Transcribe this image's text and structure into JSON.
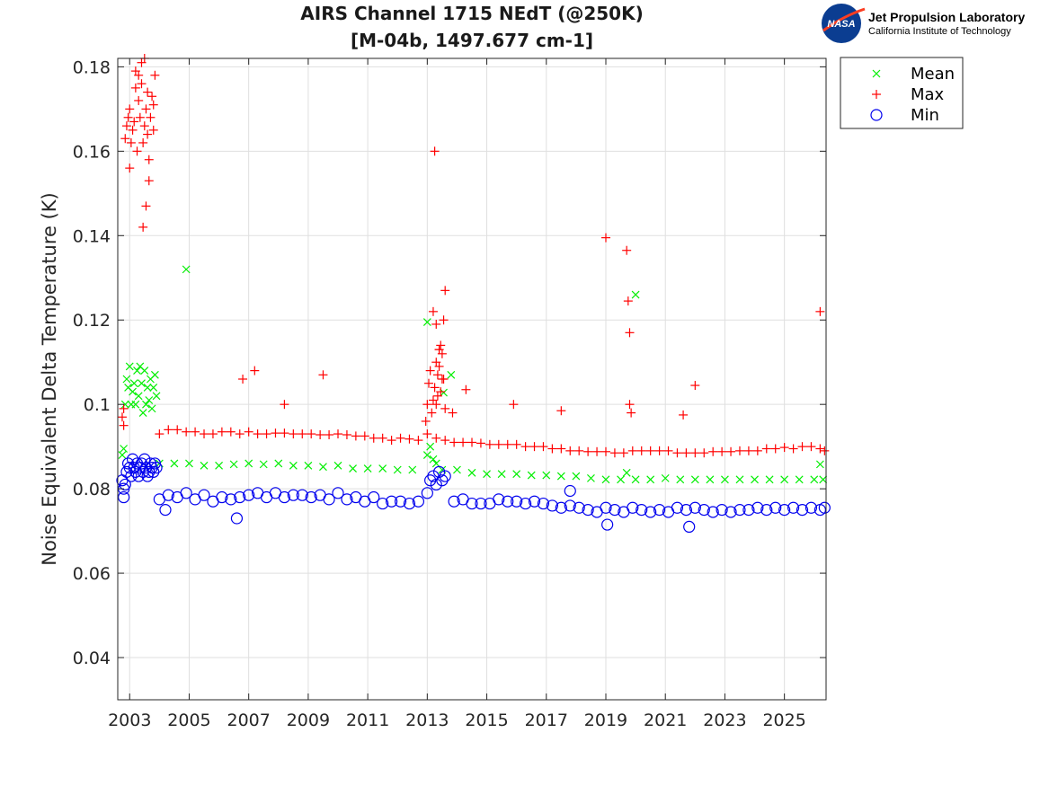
{
  "logo": {
    "badge_text": "NASA",
    "org_name": "Jet Propulsion Laboratory",
    "org_subtitle": "California Institute of Technology"
  },
  "chart_data": {
    "type": "scatter",
    "title": "AIRS Channel 1715 NEdT (@250K)",
    "subtitle": "[M-04b, 1497.677 cm-1]",
    "xlabel": "",
    "ylabel": "Noise Equivalent Delta Temperature (K)",
    "xlim": [
      2002.6,
      2026.4
    ],
    "ylim": [
      0.03,
      0.182
    ],
    "xticks": [
      2003,
      2005,
      2007,
      2009,
      2011,
      2013,
      2015,
      2017,
      2019,
      2021,
      2023,
      2025
    ],
    "xtick_labels": [
      "2003",
      "2005",
      "2007",
      "2009",
      "2011",
      "2013",
      "2015",
      "2017",
      "2019",
      "2021",
      "2023",
      "2025"
    ],
    "yticks": [
      0.04,
      0.06,
      0.08,
      0.1,
      0.12,
      0.14,
      0.16,
      0.18
    ],
    "ytick_labels": [
      "0.04",
      "0.06",
      "0.08",
      "0.1",
      "0.12",
      "0.14",
      "0.16",
      "0.18"
    ],
    "grid": true,
    "legend_position": "outside-top-right",
    "series": [
      {
        "name": "Mean",
        "marker": "x",
        "color": "#00ee00",
        "x": [
          2002.75,
          2002.8,
          2002.85,
          2002.9,
          2002.95,
          2003.0,
          2003.05,
          2003.1,
          2003.15,
          2003.2,
          2003.25,
          2003.3,
          2003.35,
          2003.4,
          2003.45,
          2003.5,
          2003.55,
          2003.6,
          2003.65,
          2003.7,
          2003.75,
          2003.8,
          2003.85,
          2003.9,
          2004.0,
          2004.5,
          2005.0,
          2005.5,
          2006.0,
          2006.5,
          2007.0,
          2007.5,
          2008.0,
          2008.5,
          2009.0,
          2009.5,
          2010.0,
          2010.5,
          2011.0,
          2011.5,
          2012.0,
          2012.5,
          2013.0,
          2013.1,
          2013.2,
          2013.3,
          2013.5,
          2014.0,
          2014.5,
          2015.0,
          2015.5,
          2016.0,
          2016.5,
          2017.0,
          2017.5,
          2018.0,
          2018.5,
          2019.0,
          2019.5,
          2020.0,
          2020.5,
          2021.0,
          2021.5,
          2022.0,
          2022.5,
          2023.0,
          2023.5,
          2024.0,
          2024.5,
          2025.0,
          2025.5,
          2026.0,
          2026.3,
          2004.9,
          2013.0,
          2013.55,
          2013.8,
          2019.7,
          2020.0,
          2026.2
        ],
        "y": [
          0.088,
          0.0895,
          0.1,
          0.106,
          0.104,
          0.109,
          0.1,
          0.103,
          0.105,
          0.1,
          0.108,
          0.102,
          0.109,
          0.105,
          0.098,
          0.108,
          0.1,
          0.104,
          0.101,
          0.106,
          0.099,
          0.104,
          0.107,
          0.102,
          0.086,
          0.086,
          0.086,
          0.0855,
          0.0855,
          0.0858,
          0.086,
          0.0858,
          0.086,
          0.0855,
          0.0855,
          0.0852,
          0.0855,
          0.0848,
          0.0848,
          0.0848,
          0.0845,
          0.0845,
          0.088,
          0.09,
          0.087,
          0.086,
          0.0845,
          0.0845,
          0.0838,
          0.0835,
          0.0835,
          0.0835,
          0.0832,
          0.0832,
          0.083,
          0.083,
          0.0825,
          0.0822,
          0.0822,
          0.0822,
          0.0822,
          0.0825,
          0.0822,
          0.0822,
          0.0822,
          0.0822,
          0.0822,
          0.0822,
          0.0822,
          0.0822,
          0.0822,
          0.0822,
          0.0822,
          0.132,
          0.1195,
          0.1028,
          0.107,
          0.0838,
          0.126,
          0.0858
        ]
      },
      {
        "name": "Max",
        "marker": "+",
        "color": "#ff0000",
        "x": [
          2002.75,
          2002.8,
          2002.85,
          2002.9,
          2002.95,
          2003.0,
          2003.05,
          2003.1,
          2003.15,
          2003.2,
          2003.25,
          2003.3,
          2003.35,
          2003.4,
          2003.45,
          2003.5,
          2003.55,
          2003.6,
          2003.65,
          2003.7,
          2003.75,
          2003.8,
          2003.85,
          2002.8,
          2003.0,
          2003.2,
          2003.4,
          2003.6,
          2003.8,
          2003.3,
          2003.5,
          2003.65,
          2003.45,
          2003.55,
          2004.0,
          2004.3,
          2004.6,
          2004.9,
          2005.2,
          2005.5,
          2005.8,
          2006.1,
          2006.4,
          2006.7,
          2007.0,
          2007.3,
          2007.6,
          2007.9,
          2008.2,
          2008.5,
          2008.8,
          2009.1,
          2009.4,
          2009.7,
          2010.0,
          2010.3,
          2010.6,
          2010.9,
          2011.2,
          2011.5,
          2011.8,
          2012.1,
          2012.4,
          2012.7,
          2013.0,
          2013.3,
          2013.6,
          2013.9,
          2014.2,
          2014.5,
          2014.8,
          2015.1,
          2015.4,
          2015.7,
          2016.0,
          2016.3,
          2016.6,
          2016.9,
          2017.2,
          2017.5,
          2017.8,
          2018.1,
          2018.4,
          2018.7,
          2019.0,
          2019.3,
          2019.6,
          2019.9,
          2020.2,
          2020.5,
          2020.8,
          2021.1,
          2021.4,
          2021.7,
          2022.0,
          2022.3,
          2022.6,
          2022.9,
          2023.2,
          2023.5,
          2023.8,
          2024.1,
          2024.4,
          2024.7,
          2025.0,
          2025.3,
          2025.6,
          2025.9,
          2026.2,
          2026.35,
          2012.95,
          2013.0,
          2013.05,
          2013.1,
          2013.15,
          2013.2,
          2013.25,
          2013.3,
          2013.35,
          2013.4,
          2013.45,
          2013.5,
          2013.55,
          2013.6,
          2013.85,
          2013.3,
          2013.35,
          2013.4,
          2013.45,
          2013.5,
          2013.55,
          2013.6,
          2013.2,
          2013.25,
          2013.3,
          2013.4,
          2006.8,
          2007.2,
          2008.2,
          2009.5,
          2014.3,
          2015.9,
          2017.5,
          2019.0,
          2019.7,
          2019.75,
          2019.8,
          2019.8,
          2019.85,
          2021.6,
          2022.0,
          2026.2
        ],
        "y": [
          0.097,
          0.099,
          0.163,
          0.166,
          0.168,
          0.17,
          0.162,
          0.165,
          0.167,
          0.175,
          0.16,
          0.172,
          0.168,
          0.176,
          0.162,
          0.166,
          0.17,
          0.174,
          0.158,
          0.168,
          0.173,
          0.165,
          0.178,
          0.095,
          0.156,
          0.179,
          0.181,
          0.164,
          0.171,
          0.178,
          0.182,
          0.153,
          0.142,
          0.147,
          0.093,
          0.094,
          0.094,
          0.0935,
          0.0935,
          0.093,
          0.093,
          0.0935,
          0.0935,
          0.093,
          0.0935,
          0.093,
          0.093,
          0.0932,
          0.0932,
          0.093,
          0.093,
          0.093,
          0.0928,
          0.0928,
          0.093,
          0.0928,
          0.0925,
          0.0925,
          0.092,
          0.092,
          0.0915,
          0.092,
          0.0918,
          0.0915,
          0.093,
          0.092,
          0.0915,
          0.091,
          0.091,
          0.091,
          0.0908,
          0.0905,
          0.0905,
          0.0905,
          0.0905,
          0.09,
          0.09,
          0.09,
          0.0895,
          0.0895,
          0.089,
          0.089,
          0.0888,
          0.0888,
          0.0888,
          0.0885,
          0.0885,
          0.089,
          0.089,
          0.089,
          0.089,
          0.089,
          0.0885,
          0.0885,
          0.0885,
          0.0885,
          0.0888,
          0.0888,
          0.0888,
          0.089,
          0.089,
          0.089,
          0.0895,
          0.0895,
          0.0898,
          0.0895,
          0.09,
          0.09,
          0.0895,
          0.089,
          0.096,
          0.1,
          0.105,
          0.108,
          0.098,
          0.101,
          0.104,
          0.11,
          0.107,
          0.113,
          0.103,
          0.112,
          0.106,
          0.099,
          0.098,
          0.1,
          0.102,
          0.109,
          0.114,
          0.106,
          0.12,
          0.127,
          0.122,
          0.16,
          0.119,
          0.113,
          0.106,
          0.108,
          0.1,
          0.107,
          0.1035,
          0.1,
          0.0985,
          0.1395,
          0.1365,
          0.1245,
          0.117,
          0.1,
          0.098,
          0.0975,
          0.1045,
          0.122
        ]
      },
      {
        "name": "Min",
        "marker": "o",
        "color": "#0000ee",
        "x": [
          2002.75,
          2002.8,
          2002.85,
          2002.9,
          2002.95,
          2003.0,
          2003.05,
          2003.1,
          2003.15,
          2003.2,
          2003.25,
          2003.3,
          2003.35,
          2003.4,
          2003.45,
          2003.5,
          2003.55,
          2003.6,
          2003.65,
          2003.7,
          2003.75,
          2003.8,
          2003.85,
          2003.9,
          2004.0,
          2004.3,
          2004.6,
          2004.9,
          2005.2,
          2005.5,
          2005.8,
          2006.1,
          2006.4,
          2006.7,
          2007.0,
          2007.3,
          2007.6,
          2007.9,
          2008.2,
          2008.5,
          2008.8,
          2009.1,
          2009.4,
          2009.7,
          2010.0,
          2010.3,
          2010.6,
          2010.9,
          2011.2,
          2011.5,
          2011.8,
          2012.1,
          2012.4,
          2012.7,
          2013.0,
          2013.1,
          2013.2,
          2013.3,
          2013.4,
          2013.5,
          2013.6,
          2013.9,
          2014.2,
          2014.5,
          2014.8,
          2015.1,
          2015.4,
          2015.7,
          2016.0,
          2016.3,
          2016.6,
          2016.9,
          2017.2,
          2017.5,
          2017.8,
          2018.1,
          2018.4,
          2018.7,
          2019.0,
          2019.3,
          2019.6,
          2019.9,
          2020.2,
          2020.5,
          2020.8,
          2021.1,
          2021.4,
          2021.7,
          2022.0,
          2022.3,
          2022.6,
          2022.9,
          2023.2,
          2023.5,
          2023.8,
          2024.1,
          2024.4,
          2024.7,
          2025.0,
          2025.3,
          2025.6,
          2025.9,
          2026.2,
          2026.35,
          2002.8,
          2004.2,
          2006.6,
          2017.8,
          2019.05,
          2021.8
        ],
        "y": [
          0.082,
          0.08,
          0.081,
          0.084,
          0.086,
          0.085,
          0.083,
          0.087,
          0.085,
          0.084,
          0.086,
          0.083,
          0.085,
          0.086,
          0.084,
          0.087,
          0.085,
          0.083,
          0.084,
          0.086,
          0.085,
          0.084,
          0.086,
          0.085,
          0.0775,
          0.0785,
          0.078,
          0.079,
          0.0775,
          0.0785,
          0.077,
          0.078,
          0.0775,
          0.078,
          0.0785,
          0.079,
          0.078,
          0.079,
          0.078,
          0.0785,
          0.0785,
          0.078,
          0.0785,
          0.0775,
          0.079,
          0.0775,
          0.078,
          0.077,
          0.078,
          0.0765,
          0.077,
          0.077,
          0.0765,
          0.077,
          0.079,
          0.082,
          0.083,
          0.081,
          0.084,
          0.082,
          0.083,
          0.077,
          0.0775,
          0.0765,
          0.0765,
          0.0765,
          0.0775,
          0.077,
          0.077,
          0.0765,
          0.077,
          0.0765,
          0.076,
          0.0755,
          0.076,
          0.0755,
          0.075,
          0.0745,
          0.0755,
          0.075,
          0.0745,
          0.0755,
          0.075,
          0.0745,
          0.075,
          0.0745,
          0.0755,
          0.075,
          0.0755,
          0.075,
          0.0745,
          0.075,
          0.0745,
          0.075,
          0.075,
          0.0755,
          0.075,
          0.0755,
          0.075,
          0.0755,
          0.075,
          0.0755,
          0.075,
          0.0755,
          0.078,
          0.075,
          0.073,
          0.0795,
          0.0715,
          0.071
        ]
      }
    ]
  }
}
